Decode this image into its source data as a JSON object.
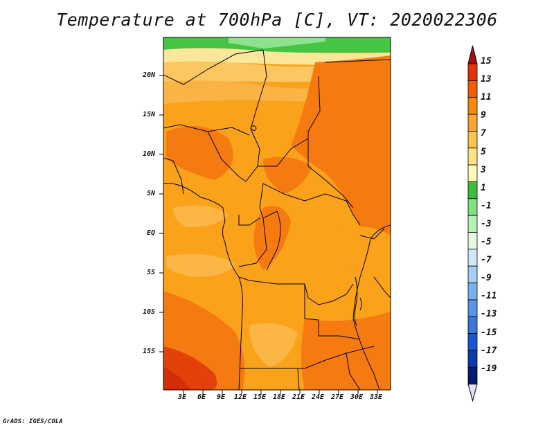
{
  "title": "Temperature at 700hPa [C], VT: 2020022306",
  "credit": "GrADS: IGES/COLA",
  "map": {
    "lat_labels": [
      "20N",
      "15N",
      "10N",
      "5N",
      "EQ",
      "5S",
      "10S",
      "15S"
    ],
    "lon_labels": [
      "3E",
      "6E",
      "9E",
      "12E",
      "15E",
      "18E",
      "21E",
      "24E",
      "27E",
      "30E",
      "33E"
    ]
  },
  "colorbar": {
    "labels": [
      "15",
      "13",
      "11",
      "9",
      "7",
      "5",
      "3",
      "1",
      "-1",
      "-3",
      "-5",
      "-7",
      "-9",
      "-11",
      "-13",
      "-15",
      "-17",
      "-19"
    ],
    "colors": [
      "#a50f15",
      "#e3340a",
      "#f25c04",
      "#f68a0c",
      "#faa531",
      "#fcc34d",
      "#fde383",
      "#fefbb8",
      "#3dbf3d",
      "#7fe27f",
      "#b4f1b4",
      "#e3fbe3",
      "#cfe6fb",
      "#a5cdf7",
      "#7aaff0",
      "#5a94e8",
      "#3a75de",
      "#1a56cf",
      "#0a3ca8",
      "#051a73",
      "#e0e0f8"
    ]
  }
}
